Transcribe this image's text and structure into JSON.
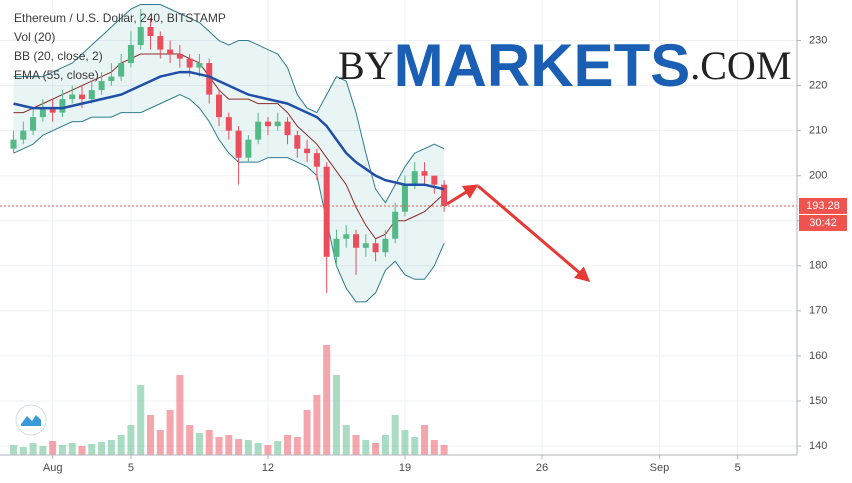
{
  "chart_data": {
    "type": "candlestick",
    "title": "Ethereum / U.S. Dollar, 240, BITSTAMP",
    "up_color": "#53b987",
    "down_color": "#eb4d5c",
    "xlim": [
      -1.69,
      39.03
    ],
    "xticks": [
      {
        "value": 1,
        "label": "Aug"
      },
      5,
      12,
      19,
      26,
      {
        "value": 32,
        "label": "Sep"
      },
      {
        "value": 36,
        "label": "5"
      }
    ],
    "ylim": [
      138,
      239
    ],
    "yticks": [
      140,
      150,
      160,
      170,
      180,
      190,
      200,
      210,
      220,
      230
    ],
    "grid": true,
    "x": [
      -1,
      -0.5,
      0,
      0.5,
      1,
      1.5,
      2,
      2.5,
      3,
      3.5,
      4,
      4.5,
      5,
      5.5,
      6,
      6.5,
      7,
      7.5,
      8,
      8.5,
      9,
      9.5,
      10,
      10.5,
      11,
      11.5,
      12,
      12.5,
      13,
      13.5,
      14,
      14.5,
      15,
      15.5,
      16,
      16.5,
      17,
      17.5,
      18,
      18.5,
      19,
      19.5,
      20,
      20.5,
      21
    ],
    "open": [
      206,
      208,
      210,
      213,
      215,
      214,
      217,
      218,
      217,
      219,
      221,
      222,
      225,
      229,
      233,
      231,
      228,
      227,
      226,
      224,
      225,
      218,
      213,
      210,
      204,
      208,
      212,
      211,
      212,
      209,
      206,
      205,
      202,
      182,
      186,
      187,
      184,
      185,
      183,
      186,
      192,
      198,
      201,
      200,
      198
    ],
    "high": [
      210,
      212,
      215,
      217,
      217,
      219,
      220,
      220,
      221,
      223,
      225,
      227,
      232,
      237,
      235,
      232,
      230,
      229,
      227,
      227,
      226,
      219,
      214,
      211,
      209,
      214,
      213,
      214,
      213,
      210,
      208,
      206,
      203,
      188,
      189,
      188,
      187,
      186,
      188,
      194,
      200,
      203,
      203,
      200,
      199
    ],
    "low": [
      205,
      207,
      209,
      212,
      212,
      213,
      216,
      215,
      216,
      218,
      220,
      221,
      224,
      228,
      228,
      226,
      225,
      224,
      222,
      222,
      216,
      211,
      208,
      198,
      203,
      207,
      209,
      210,
      207,
      204,
      203,
      199,
      174,
      180,
      184,
      178,
      182,
      181,
      182,
      185,
      191,
      197,
      198,
      196,
      192
    ],
    "close": [
      208,
      210,
      213,
      215,
      214,
      217,
      218,
      217,
      219,
      221,
      222,
      225,
      229,
      233,
      231,
      228,
      227,
      226,
      224,
      225,
      218,
      213,
      210,
      204,
      208,
      212,
      211,
      212,
      209,
      206,
      205,
      202,
      182,
      186,
      187,
      184,
      185,
      183,
      186,
      192,
      198,
      201,
      200,
      198,
      193.28
    ],
    "volume": {
      "label": "Vol (20)",
      "values": [
        10,
        8,
        12,
        9,
        14,
        10,
        12,
        9,
        11,
        13,
        15,
        20,
        30,
        70,
        40,
        25,
        45,
        80,
        30,
        22,
        25,
        18,
        20,
        16,
        15,
        12,
        10,
        14,
        20,
        18,
        45,
        60,
        110,
        80,
        30,
        20,
        15,
        12,
        20,
        40,
        25,
        18,
        30,
        15,
        10
      ]
    },
    "bb": {
      "label": "BB (20, close, 2)",
      "color": "#2e7d8c",
      "basis_color": "#8b2b2b",
      "fill": "rgba(40,150,160,0.10)",
      "upper": [
        222,
        222,
        222,
        222,
        223,
        224,
        225,
        227,
        229,
        231,
        233,
        235,
        237,
        238,
        238,
        238,
        237,
        236,
        235,
        234,
        232,
        230,
        229,
        230,
        230,
        229,
        228,
        227,
        224,
        218,
        215,
        214,
        218,
        222,
        221,
        214,
        205,
        197,
        194,
        198,
        202,
        205,
        206,
        207,
        206
      ],
      "lower": [
        205,
        206,
        207,
        209,
        210,
        211,
        212,
        212,
        213,
        213,
        213,
        214,
        214,
        214,
        215,
        216,
        217,
        218,
        217,
        215,
        212,
        208,
        205,
        203,
        203,
        203,
        204,
        204,
        204,
        203,
        202,
        200,
        190,
        180,
        175,
        172,
        172,
        174,
        179,
        181,
        178,
        177,
        177,
        180,
        185
      ],
      "basis": [
        214,
        214,
        215,
        216,
        217,
        218,
        219,
        220,
        221,
        222,
        223,
        225,
        226,
        227,
        227,
        227,
        227,
        227,
        226,
        225,
        222,
        219,
        217,
        217,
        217,
        216,
        216,
        216,
        214,
        211,
        209,
        207,
        204,
        201,
        198,
        193,
        189,
        186,
        187,
        190,
        190,
        191,
        192,
        194,
        196
      ]
    },
    "ema": {
      "label": "EMA (55, close)",
      "color": "#1f4fa8",
      "values": [
        216,
        215.5,
        215,
        215,
        215,
        215,
        215.5,
        216,
        216.5,
        217,
        217.5,
        218,
        219,
        220,
        221,
        222,
        222.5,
        223,
        223,
        222.5,
        222,
        221,
        220,
        219,
        218,
        217.5,
        217,
        216.5,
        216,
        215,
        214,
        213,
        211,
        208,
        205,
        203,
        201.5,
        200,
        199,
        198.5,
        198,
        198,
        198,
        197.5,
        197
      ]
    },
    "last_price": {
      "value": 193.28,
      "label": "193.28",
      "countdown": "30:42",
      "color": "#ef5350"
    },
    "watermark": {
      "prefix": "BY",
      "name": "MARKETS",
      "suffix": ".COM"
    }
  }
}
